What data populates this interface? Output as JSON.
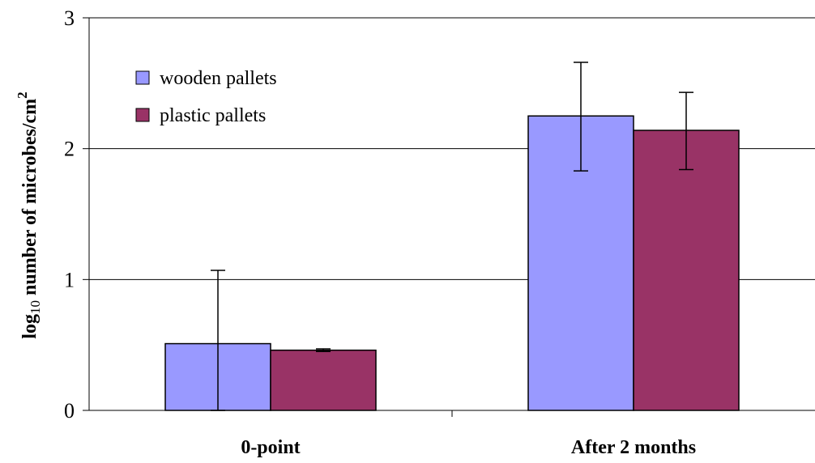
{
  "chart_data": {
    "type": "bar",
    "title": "",
    "xlabel": "",
    "ylabel": {
      "prefix": "log",
      "subscript": "10",
      "main": " number of microbes/cm",
      "superscript": "2"
    },
    "categories": [
      "0-point",
      "After 2 months"
    ],
    "series": [
      {
        "name": "wooden pallets",
        "color": "#9999ff",
        "values": [
          0.51,
          2.25
        ],
        "error_low": [
          0.0,
          1.83
        ],
        "error_high": [
          1.07,
          2.66
        ]
      },
      {
        "name": "plastic pallets",
        "color": "#993366",
        "values": [
          0.46,
          2.14
        ],
        "error_low": [
          0.45,
          1.84
        ],
        "error_high": [
          0.47,
          2.43
        ]
      }
    ],
    "ylim": [
      0,
      3
    ],
    "yticks": [
      "0",
      "1",
      "2",
      "3"
    ],
    "grid": true,
    "legend_position": "top-left"
  }
}
